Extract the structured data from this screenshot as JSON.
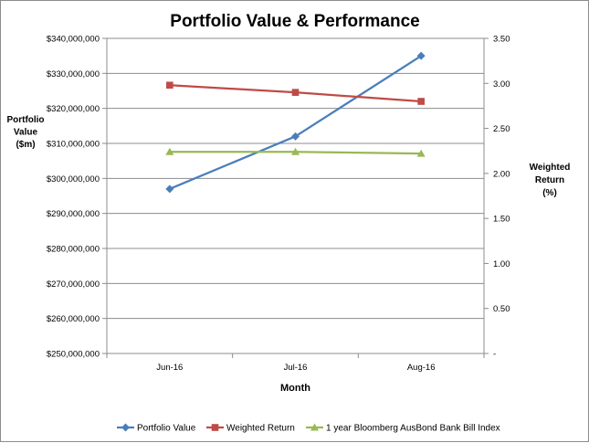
{
  "chart_data": {
    "type": "line",
    "title": "Portfolio Value & Performance",
    "xlabel": "Month",
    "ylabel_left": [
      "Portfolio",
      "Value",
      "($m)"
    ],
    "ylabel_right": [
      "Weighted",
      "Return",
      "(%)"
    ],
    "categories": [
      "Jun-16",
      "Jul-16",
      "Aug-16"
    ],
    "y_left": {
      "min": 250000000,
      "max": 340000000,
      "ticks": [
        250000000,
        260000000,
        270000000,
        280000000,
        290000000,
        300000000,
        310000000,
        320000000,
        330000000,
        340000000
      ],
      "tick_labels": [
        "$250,000,000",
        "$260,000,000",
        "$270,000,000",
        "$280,000,000",
        "$290,000,000",
        "$300,000,000",
        "$310,000,000",
        "$320,000,000",
        "$330,000,000",
        "$340,000,000"
      ]
    },
    "y_right": {
      "min": 0,
      "max": 3.5,
      "ticks": [
        0,
        0.5,
        1.0,
        1.5,
        2.0,
        2.5,
        3.0,
        3.5
      ],
      "tick_labels": [
        "-",
        "0.50",
        "1.00",
        "1.50",
        "2.00",
        "2.50",
        "3.00",
        "3.50"
      ]
    },
    "series": [
      {
        "name": "Portfolio Value",
        "axis": "left",
        "color": "#4a7ebb",
        "marker": "diamond",
        "values": [
          297000000,
          312000000,
          335000000
        ]
      },
      {
        "name": "Weighted Return",
        "axis": "right",
        "color": "#be4b48",
        "marker": "square",
        "values": [
          2.98,
          2.9,
          2.8
        ]
      },
      {
        "name": "1 year Bloomberg AusBond Bank Bill Index",
        "axis": "right",
        "color": "#98b954",
        "marker": "triangle",
        "values": [
          2.24,
          2.24,
          2.22
        ]
      }
    ],
    "grid": "horizontal",
    "legend_position": "bottom"
  }
}
